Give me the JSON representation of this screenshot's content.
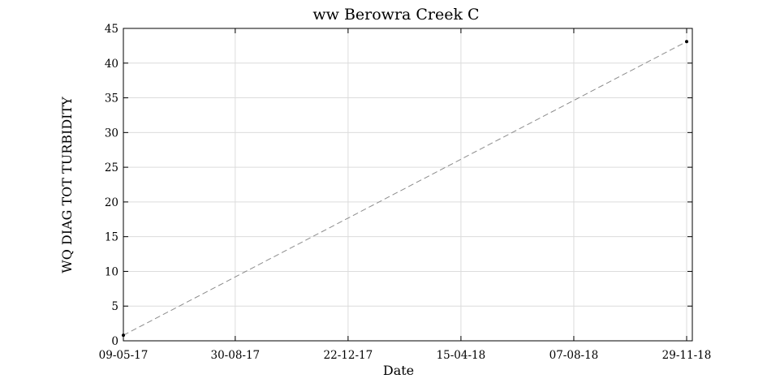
{
  "chart_data": {
    "type": "line",
    "title": "ww Berowra Creek C",
    "xlabel": "Date",
    "ylabel": "WQ DIAG TOT TURBIDITY",
    "x_ticks": [
      "09-05-17",
      "30-08-17",
      "22-12-17",
      "15-04-18",
      "07-08-18",
      "29-11-18"
    ],
    "xlim": [
      "09-05-17",
      "29-11-18"
    ],
    "ylim": [
      0,
      45
    ],
    "y_ticks": [
      0,
      5,
      10,
      15,
      20,
      25,
      30,
      35,
      40,
      45
    ],
    "grid": true,
    "series": [
      {
        "name": "WQ DIAG TOT TURBIDITY",
        "x": [
          "09-05-17",
          "29-11-18"
        ],
        "y": [
          0.8,
          43.1
        ],
        "line_style": "dashed",
        "line_color": "#8c8c8c",
        "marker_color": "#000000"
      }
    ]
  }
}
